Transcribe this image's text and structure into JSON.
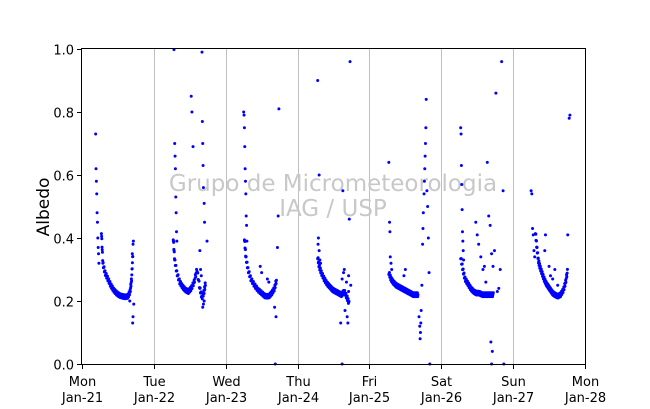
{
  "chart_data": {
    "type": "scatter",
    "title": "",
    "ylabel": "Albedo",
    "xlabel": "",
    "ylim": [
      0,
      1
    ],
    "yticks": [
      "0.0",
      "0.2",
      "0.4",
      "0.6",
      "0.8",
      "1.0"
    ],
    "xlim": [
      0,
      7
    ],
    "xticks": [
      {
        "day": "Mon",
        "date": "Jan-21"
      },
      {
        "day": "Tue",
        "date": "Jan-22"
      },
      {
        "day": "Wed",
        "date": "Jan-23"
      },
      {
        "day": "Thu",
        "date": "Jan-24"
      },
      {
        "day": "Fri",
        "date": "Jan-25"
      },
      {
        "day": "Sat",
        "date": "Jan-26"
      },
      {
        "day": "Sun",
        "date": "Jan-27"
      },
      {
        "day": "Mon",
        "date": "Jan-28"
      }
    ],
    "grid": "vertical-day-lines",
    "marker_color": "#0000ff",
    "watermark": [
      "Grupo de Micrometeorologia",
      "IAG / USP"
    ],
    "days": [
      {
        "curve": [
          [
            0.27,
            0.42
          ],
          [
            0.29,
            0.32
          ],
          [
            0.32,
            0.29
          ],
          [
            0.36,
            0.27
          ],
          [
            0.4,
            0.25
          ],
          [
            0.44,
            0.235
          ],
          [
            0.48,
            0.225
          ],
          [
            0.52,
            0.218
          ],
          [
            0.56,
            0.215
          ],
          [
            0.6,
            0.213
          ],
          [
            0.64,
            0.215
          ],
          [
            0.67,
            0.23
          ],
          [
            0.69,
            0.27
          ],
          [
            0.71,
            0.36
          ]
        ],
        "extra": [
          [
            0.19,
            0.73
          ],
          [
            0.195,
            0.62
          ],
          [
            0.2,
            0.58
          ],
          [
            0.205,
            0.54
          ],
          [
            0.21,
            0.48
          ],
          [
            0.215,
            0.45
          ],
          [
            0.22,
            0.4
          ],
          [
            0.225,
            0.37
          ],
          [
            0.23,
            0.35
          ],
          [
            0.235,
            0.32
          ],
          [
            0.71,
            0.38
          ],
          [
            0.715,
            0.39
          ],
          [
            0.7,
            0.35
          ],
          [
            0.705,
            0.13
          ],
          [
            0.71,
            0.15
          ],
          [
            0.72,
            0.19
          ],
          [
            0.665,
            0.2
          ]
        ]
      },
      {
        "curve": [
          [
            0.27,
            0.4
          ],
          [
            0.29,
            0.33
          ],
          [
            0.32,
            0.29
          ],
          [
            0.36,
            0.26
          ],
          [
            0.4,
            0.245
          ],
          [
            0.44,
            0.235
          ],
          [
            0.48,
            0.23
          ],
          [
            0.52,
            0.24
          ],
          [
            0.56,
            0.26
          ],
          [
            0.6,
            0.3
          ],
          [
            0.64,
            0.24
          ],
          [
            0.67,
            0.21
          ],
          [
            0.7,
            0.23
          ],
          [
            0.72,
            0.26
          ]
        ],
        "extra": [
          [
            0.28,
            0.998
          ],
          [
            0.29,
            0.7
          ],
          [
            0.295,
            0.66
          ],
          [
            0.3,
            0.62
          ],
          [
            0.305,
            0.53
          ],
          [
            0.31,
            0.48
          ],
          [
            0.315,
            0.42
          ],
          [
            0.32,
            0.39
          ],
          [
            0.52,
            0.85
          ],
          [
            0.53,
            0.8
          ],
          [
            0.545,
            0.69
          ],
          [
            0.67,
            0.99
          ],
          [
            0.675,
            0.77
          ],
          [
            0.68,
            0.7
          ],
          [
            0.685,
            0.63
          ],
          [
            0.69,
            0.56
          ],
          [
            0.7,
            0.51
          ],
          [
            0.705,
            0.45
          ],
          [
            0.64,
            0.36
          ],
          [
            0.65,
            0.3
          ],
          [
            0.66,
            0.28
          ],
          [
            0.7,
            0.2
          ],
          [
            0.68,
            0.18
          ],
          [
            0.69,
            0.19
          ],
          [
            0.74,
            0.39
          ]
        ]
      },
      {
        "curve": [
          [
            0.26,
            0.4
          ],
          [
            0.28,
            0.34
          ],
          [
            0.31,
            0.3
          ],
          [
            0.35,
            0.27
          ],
          [
            0.4,
            0.25
          ],
          [
            0.45,
            0.235
          ],
          [
            0.5,
            0.225
          ],
          [
            0.55,
            0.215
          ],
          [
            0.6,
            0.215
          ],
          [
            0.64,
            0.225
          ],
          [
            0.68,
            0.24
          ],
          [
            0.71,
            0.27
          ]
        ],
        "extra": [
          [
            0.25,
            0.8
          ],
          [
            0.255,
            0.79
          ],
          [
            0.26,
            0.75
          ],
          [
            0.265,
            0.69
          ],
          [
            0.27,
            0.62
          ],
          [
            0.275,
            0.58
          ],
          [
            0.28,
            0.54
          ],
          [
            0.285,
            0.47
          ],
          [
            0.29,
            0.44
          ],
          [
            0.295,
            0.39
          ],
          [
            0.48,
            0.31
          ],
          [
            0.5,
            0.29
          ],
          [
            0.58,
            0.27
          ],
          [
            0.6,
            0.26
          ],
          [
            0.74,
            0.81
          ],
          [
            0.73,
            0.47
          ],
          [
            0.72,
            0.37
          ],
          [
            0.7,
            0.15
          ],
          [
            0.68,
            0.18
          ],
          [
            0.69,
            0.0
          ]
        ]
      },
      {
        "curve": [
          [
            0.28,
            0.34
          ],
          [
            0.3,
            0.31
          ],
          [
            0.33,
            0.29
          ],
          [
            0.37,
            0.27
          ],
          [
            0.41,
            0.255
          ],
          [
            0.45,
            0.245
          ],
          [
            0.49,
            0.235
          ],
          [
            0.53,
            0.23
          ],
          [
            0.57,
            0.225
          ],
          [
            0.61,
            0.22
          ],
          [
            0.65,
            0.23
          ],
          [
            0.69,
            0.21
          ],
          [
            0.72,
            0.19
          ]
        ],
        "extra": [
          [
            0.28,
            0.9
          ],
          [
            0.3,
            0.6
          ],
          [
            0.29,
            0.4
          ],
          [
            0.285,
            0.38
          ],
          [
            0.3,
            0.36
          ],
          [
            0.31,
            0.33
          ],
          [
            0.32,
            0.32
          ],
          [
            0.63,
            0.55
          ],
          [
            0.62,
            0.27
          ],
          [
            0.64,
            0.29
          ],
          [
            0.65,
            0.3
          ],
          [
            0.6,
            0.13
          ],
          [
            0.62,
            0.0
          ],
          [
            0.68,
            0.26
          ],
          [
            0.69,
            0.15
          ],
          [
            0.7,
            0.13
          ],
          [
            0.71,
            0.23
          ],
          [
            0.72,
            0.46
          ],
          [
            0.73,
            0.96
          ],
          [
            0.74,
            0.25
          ],
          [
            0.71,
            0.28
          ],
          [
            0.66,
            0.17
          ]
        ]
      },
      {
        "curve": [
          [
            0.27,
            0.29
          ],
          [
            0.3,
            0.27
          ],
          [
            0.33,
            0.26
          ],
          [
            0.37,
            0.25
          ],
          [
            0.41,
            0.245
          ],
          [
            0.45,
            0.24
          ],
          [
            0.49,
            0.235
          ],
          [
            0.53,
            0.23
          ],
          [
            0.57,
            0.225
          ],
          [
            0.61,
            0.22
          ],
          [
            0.65,
            0.22
          ],
          [
            0.68,
            0.22
          ]
        ],
        "extra": [
          [
            0.27,
            0.64
          ],
          [
            0.28,
            0.45
          ],
          [
            0.285,
            0.42
          ],
          [
            0.29,
            0.34
          ],
          [
            0.3,
            0.32
          ],
          [
            0.31,
            0.3
          ],
          [
            0.48,
            0.28
          ],
          [
            0.5,
            0.3
          ],
          [
            0.69,
            0.15
          ],
          [
            0.7,
            0.12
          ],
          [
            0.71,
            0.1
          ],
          [
            0.705,
            0.08
          ],
          [
            0.715,
            0.13
          ],
          [
            0.72,
            0.17
          ],
          [
            0.73,
            0.25
          ],
          [
            0.74,
            0.38
          ],
          [
            0.745,
            0.43
          ],
          [
            0.75,
            0.48
          ],
          [
            0.76,
            0.54
          ],
          [
            0.765,
            0.58
          ],
          [
            0.77,
            0.62
          ],
          [
            0.775,
            0.66
          ],
          [
            0.78,
            0.7
          ],
          [
            0.785,
            0.75
          ],
          [
            0.79,
            0.84
          ],
          [
            0.8,
            0.55
          ],
          [
            0.81,
            0.5
          ],
          [
            0.82,
            0.4
          ],
          [
            0.83,
            0.29
          ],
          [
            0.84,
            0.0
          ]
        ]
      },
      {
        "curve": [
          [
            0.27,
            0.34
          ],
          [
            0.3,
            0.3
          ],
          [
            0.33,
            0.27
          ],
          [
            0.37,
            0.255
          ],
          [
            0.41,
            0.24
          ],
          [
            0.45,
            0.23
          ],
          [
            0.49,
            0.225
          ],
          [
            0.53,
            0.225
          ],
          [
            0.57,
            0.22
          ],
          [
            0.61,
            0.22
          ],
          [
            0.65,
            0.22
          ],
          [
            0.69,
            0.22
          ],
          [
            0.73,
            0.22
          ]
        ],
        "extra": [
          [
            0.27,
            0.75
          ],
          [
            0.275,
            0.73
          ],
          [
            0.28,
            0.63
          ],
          [
            0.285,
            0.57
          ],
          [
            0.29,
            0.49
          ],
          [
            0.295,
            0.42
          ],
          [
            0.3,
            0.39
          ],
          [
            0.305,
            0.36
          ],
          [
            0.31,
            0.33
          ],
          [
            0.48,
            0.45
          ],
          [
            0.5,
            0.41
          ],
          [
            0.52,
            0.38
          ],
          [
            0.55,
            0.34
          ],
          [
            0.58,
            0.3
          ],
          [
            0.6,
            0.31
          ],
          [
            0.62,
            0.26
          ],
          [
            0.64,
            0.64
          ],
          [
            0.66,
            0.47
          ],
          [
            0.68,
            0.44
          ],
          [
            0.7,
            0.35
          ],
          [
            0.72,
            0.31
          ],
          [
            0.74,
            0.36
          ],
          [
            0.76,
            0.86
          ],
          [
            0.78,
            0.23
          ],
          [
            0.8,
            0.24
          ],
          [
            0.82,
            0.3
          ],
          [
            0.84,
            0.96
          ],
          [
            0.86,
            0.55
          ],
          [
            0.87,
            0.0
          ],
          [
            0.69,
            0.07
          ],
          [
            0.7,
            0.0
          ],
          [
            0.71,
            0.04
          ]
        ]
      },
      {
        "curve": [
          [
            0.31,
            0.42
          ],
          [
            0.33,
            0.37
          ],
          [
            0.35,
            0.33
          ],
          [
            0.37,
            0.31
          ],
          [
            0.4,
            0.29
          ],
          [
            0.43,
            0.27
          ],
          [
            0.46,
            0.255
          ],
          [
            0.49,
            0.245
          ],
          [
            0.52,
            0.235
          ],
          [
            0.55,
            0.225
          ],
          [
            0.58,
            0.22
          ],
          [
            0.62,
            0.215
          ],
          [
            0.66,
            0.22
          ],
          [
            0.7,
            0.235
          ],
          [
            0.73,
            0.26
          ],
          [
            0.76,
            0.3
          ]
        ],
        "extra": [
          [
            0.25,
            0.55
          ],
          [
            0.26,
            0.54
          ],
          [
            0.27,
            0.43
          ],
          [
            0.28,
            0.41
          ],
          [
            0.29,
            0.36
          ],
          [
            0.3,
            0.34
          ],
          [
            0.45,
            0.41
          ],
          [
            0.44,
            0.36
          ],
          [
            0.5,
            0.31
          ],
          [
            0.52,
            0.28
          ],
          [
            0.55,
            0.27
          ],
          [
            0.58,
            0.3
          ],
          [
            0.62,
            0.25
          ],
          [
            0.76,
            0.41
          ],
          [
            0.78,
            0.78
          ],
          [
            0.79,
            0.79
          ]
        ]
      }
    ]
  }
}
